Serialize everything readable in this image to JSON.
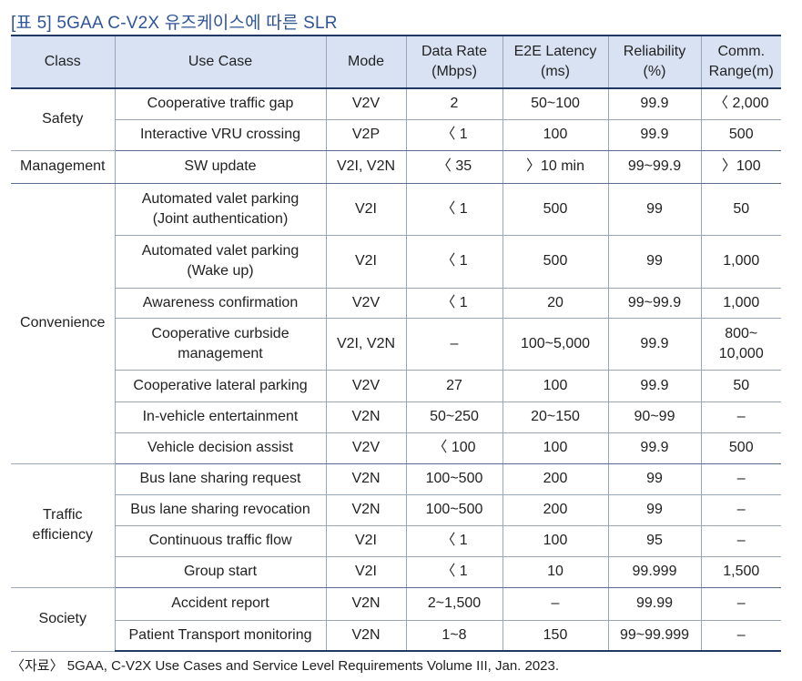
{
  "caption": "[표 5] 5GAA C-V2X 유즈케이스에 따른 SLR",
  "headers": [
    "Class",
    "Use Case",
    "Mode",
    "Data Rate\n(Mbps)",
    "E2E Latency\n(ms)",
    "Reliability\n(%)",
    "Comm.\nRange(m)"
  ],
  "groups": [
    {
      "class": "Safety",
      "rows": [
        [
          "Cooperative traffic gap",
          "V2V",
          "2",
          "50~100",
          "99.9",
          "〈 2,000"
        ],
        [
          "Interactive VRU crossing",
          "V2P",
          "〈 1",
          "100",
          "99.9",
          "500"
        ]
      ]
    },
    {
      "class": "Management",
      "rows": [
        [
          "SW update",
          "V2I, V2N",
          "〈 35",
          "〉10 min",
          "99~99.9",
          "〉100"
        ]
      ]
    },
    {
      "class": "Convenience",
      "rows": [
        [
          "Automated valet parking\n(Joint authentication)",
          "V2I",
          "〈 1",
          "500",
          "99",
          "50"
        ],
        [
          "Automated valet parking\n(Wake up)",
          "V2I",
          "〈 1",
          "500",
          "99",
          "1,000"
        ],
        [
          "Awareness confirmation",
          "V2V",
          "〈 1",
          "20",
          "99~99.9",
          "1,000"
        ],
        [
          "Cooperative curbside\nmanagement",
          "V2I, V2N",
          "–",
          "100~5,000",
          "99.9",
          "800~\n10,000"
        ],
        [
          "Cooperative lateral parking",
          "V2V",
          "27",
          "100",
          "99.9",
          "50"
        ],
        [
          "In-vehicle entertainment",
          "V2N",
          "50~250",
          "20~150",
          "90~99",
          "–"
        ],
        [
          "Vehicle decision assist",
          "V2V",
          "〈 100",
          "100",
          "99.9",
          "500"
        ]
      ]
    },
    {
      "class": "Traffic\nefficiency",
      "rows": [
        [
          "Bus lane sharing request",
          "V2N",
          "100~500",
          "200",
          "99",
          "–"
        ],
        [
          "Bus lane sharing revocation",
          "V2N",
          "100~500",
          "200",
          "99",
          "–"
        ],
        [
          "Continuous traffic flow",
          "V2I",
          "〈 1",
          "100",
          "95",
          "–"
        ],
        [
          "Group start",
          "V2I",
          "〈 1",
          "10",
          "99.999",
          "1,500"
        ]
      ]
    },
    {
      "class": "Society",
      "rows": [
        [
          "Accident report",
          "V2N",
          "2~1,500",
          "–",
          "99.99",
          "–"
        ],
        [
          "Patient Transport monitoring",
          "V2N",
          "1~8",
          "150",
          "99~99.999",
          "–"
        ]
      ]
    }
  ],
  "source": "〈자료〉 5GAA, C-V2X Use Cases and Service Level Requirements Volume III, Jan. 2023."
}
